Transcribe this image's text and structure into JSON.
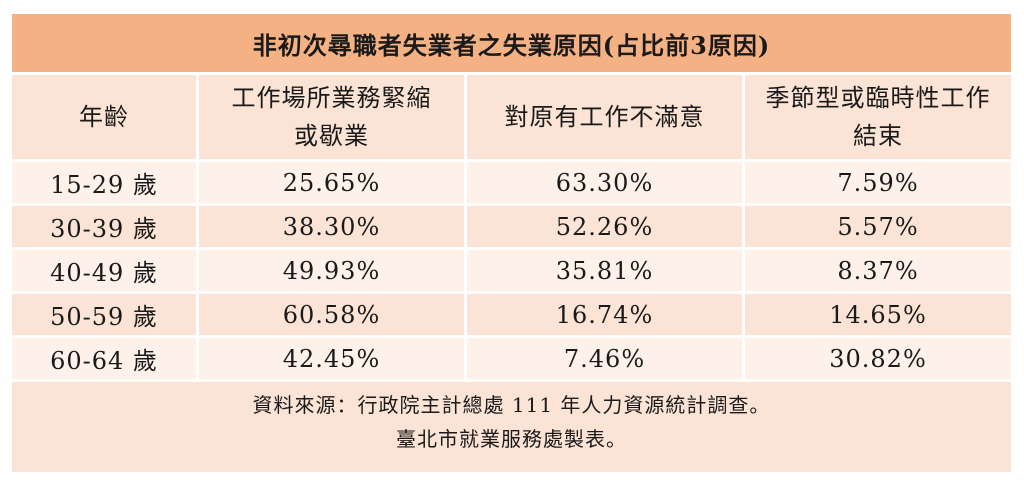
{
  "title": "非初次尋職者失業者之失業原因(占比前3原因)",
  "headers": [
    "年齡",
    "工作場所業務緊縮或歇業",
    "對原有工作不滿意",
    "季節型或臨時性工作結束"
  ],
  "rows": [
    [
      "15-29 歲",
      "25.65%",
      "63.30%",
      "7.59%"
    ],
    [
      "30-39 歲",
      "38.30%",
      "52.26%",
      "5.57%"
    ],
    [
      "40-49 歲",
      "49.93%",
      "35.81%",
      "8.37%"
    ],
    [
      "50-59 歲",
      "60.58%",
      "16.74%",
      "14.65%"
    ],
    [
      "60-64 歲",
      "42.45%",
      "7.46%",
      "30.82%"
    ]
  ],
  "footer": {
    "source": "資料來源：行政院主計總處 111 年人力資源統計調查。",
    "maker": "臺北市就業服務處製表。"
  },
  "colors": {
    "title_bg": "#f4b183",
    "header_bg": "#fbe4d5",
    "row_alt_bg": "#fdf1ea"
  }
}
